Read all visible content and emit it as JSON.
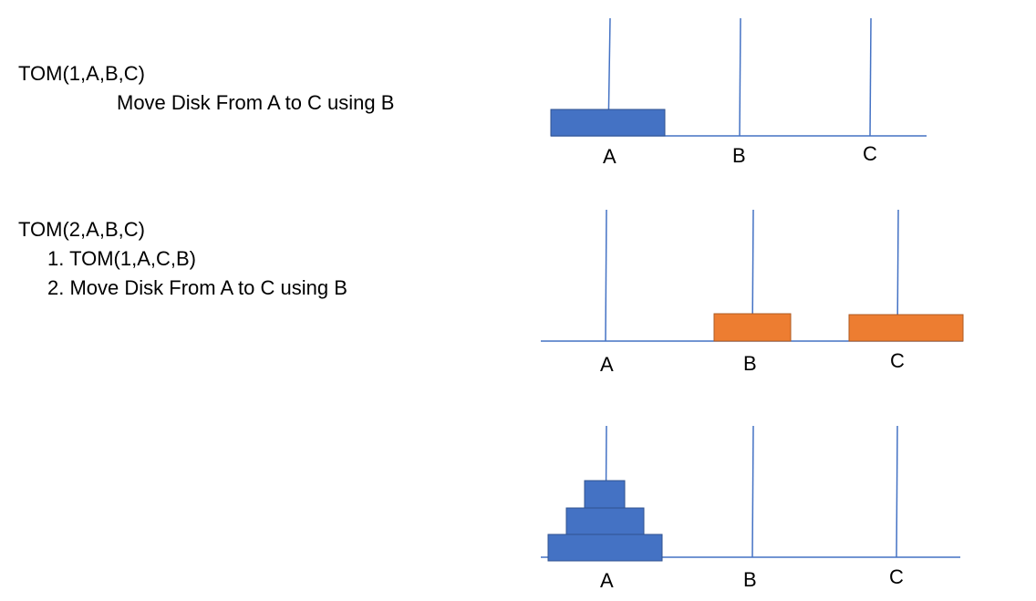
{
  "blocks": [
    {
      "lines": [
        "TOM(1,A,B,C)",
        "Move Disk From A to C using B"
      ]
    },
    {
      "lines": [
        "TOM(2,A,B,C)",
        "1. TOM(1,A,C,B)",
        "2. Move Disk From A to C using B"
      ]
    }
  ],
  "colors": {
    "peg": "#4472c4",
    "disk_blue": "#4472c4",
    "disk_orange": "#ed7d31",
    "disk_border": "#2f528f",
    "disk_orange_border": "#ae5a21"
  },
  "figures": [
    {
      "labels": [
        "A",
        "B",
        "C"
      ],
      "disks": [
        {
          "peg": "A",
          "color": "blue"
        }
      ]
    },
    {
      "labels": [
        "A",
        "B",
        "C"
      ],
      "disks": [
        {
          "peg": "B",
          "color": "orange"
        },
        {
          "peg": "C",
          "color": "orange"
        }
      ]
    },
    {
      "labels": [
        "A",
        "B",
        "C"
      ],
      "disks": [
        {
          "peg": "A",
          "color": "blue"
        },
        {
          "peg": "A",
          "color": "blue"
        },
        {
          "peg": "A",
          "color": "blue"
        }
      ]
    }
  ]
}
